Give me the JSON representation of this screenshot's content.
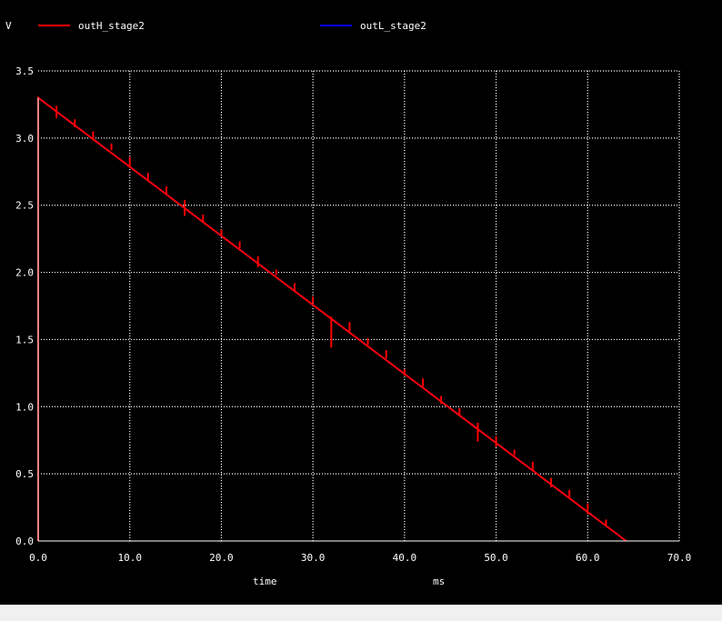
{
  "chart_data": {
    "type": "line",
    "ylabel": "V",
    "xlabel": "time",
    "x_unit": "ms",
    "xlim": [
      0,
      70
    ],
    "ylim": [
      0,
      3.5
    ],
    "x_ticks": [
      "0.0",
      "10.0",
      "20.0",
      "30.0",
      "40.0",
      "50.0",
      "60.0",
      "70.0"
    ],
    "y_ticks": [
      "0.0",
      "0.5",
      "1.0",
      "1.5",
      "2.0",
      "2.5",
      "3.0",
      "3.5"
    ],
    "grid": true,
    "legend_position": "top",
    "series": [
      {
        "name": "outH_stage2",
        "color": "#ff0000",
        "x": [
          0,
          0,
          64.2
        ],
        "y": [
          0,
          3.3,
          0
        ],
        "spikes": [
          {
            "x": 2.0,
            "y_low": 3.15,
            "y_high": 3.24
          },
          {
            "x": 4.0,
            "y_low": 3.08,
            "y_high": 3.14
          },
          {
            "x": 6.0,
            "y_low": 2.98,
            "y_high": 3.05
          },
          {
            "x": 8.0,
            "y_low": 2.91,
            "y_high": 2.96
          },
          {
            "x": 10.0,
            "y_low": 2.78,
            "y_high": 2.86
          },
          {
            "x": 12.0,
            "y_low": 2.68,
            "y_high": 2.74
          },
          {
            "x": 14.0,
            "y_low": 2.58,
            "y_high": 2.64
          },
          {
            "x": 16.0,
            "y_low": 2.42,
            "y_high": 2.54
          },
          {
            "x": 18.0,
            "y_low": 2.38,
            "y_high": 2.43
          },
          {
            "x": 20.0,
            "y_low": 2.28,
            "y_high": 2.32
          },
          {
            "x": 22.0,
            "y_low": 2.18,
            "y_high": 2.23
          },
          {
            "x": 24.0,
            "y_low": 2.04,
            "y_high": 2.12
          },
          {
            "x": 26.0,
            "y_low": 1.98,
            "y_high": 2.02
          },
          {
            "x": 28.0,
            "y_low": 1.86,
            "y_high": 1.92
          },
          {
            "x": 30.0,
            "y_low": 1.77,
            "y_high": 1.82
          },
          {
            "x": 32.0,
            "y_low": 1.44,
            "y_high": 1.67
          },
          {
            "x": 34.0,
            "y_low": 1.56,
            "y_high": 1.63
          },
          {
            "x": 36.0,
            "y_low": 1.46,
            "y_high": 1.51
          },
          {
            "x": 38.0,
            "y_low": 1.36,
            "y_high": 1.42
          },
          {
            "x": 40.0,
            "y_low": 1.23,
            "y_high": 1.28
          },
          {
            "x": 42.0,
            "y_low": 1.15,
            "y_high": 1.21
          },
          {
            "x": 44.0,
            "y_low": 1.02,
            "y_high": 1.08
          },
          {
            "x": 46.0,
            "y_low": 0.93,
            "y_high": 0.99
          },
          {
            "x": 48.0,
            "y_low": 0.74,
            "y_high": 0.88
          },
          {
            "x": 50.0,
            "y_low": 0.7,
            "y_high": 0.78
          },
          {
            "x": 52.0,
            "y_low": 0.64,
            "y_high": 0.68
          },
          {
            "x": 54.0,
            "y_low": 0.52,
            "y_high": 0.59
          },
          {
            "x": 56.0,
            "y_low": 0.4,
            "y_high": 0.47
          },
          {
            "x": 58.0,
            "y_low": 0.32,
            "y_high": 0.38
          },
          {
            "x": 60.0,
            "y_low": 0.2,
            "y_high": 0.28
          },
          {
            "x": 62.0,
            "y_low": 0.11,
            "y_high": 0.16
          }
        ]
      },
      {
        "name": "outL_stage2",
        "color": "#0000ff",
        "x": [
          0,
          64.2
        ],
        "y": [
          3.3,
          0
        ]
      }
    ]
  }
}
